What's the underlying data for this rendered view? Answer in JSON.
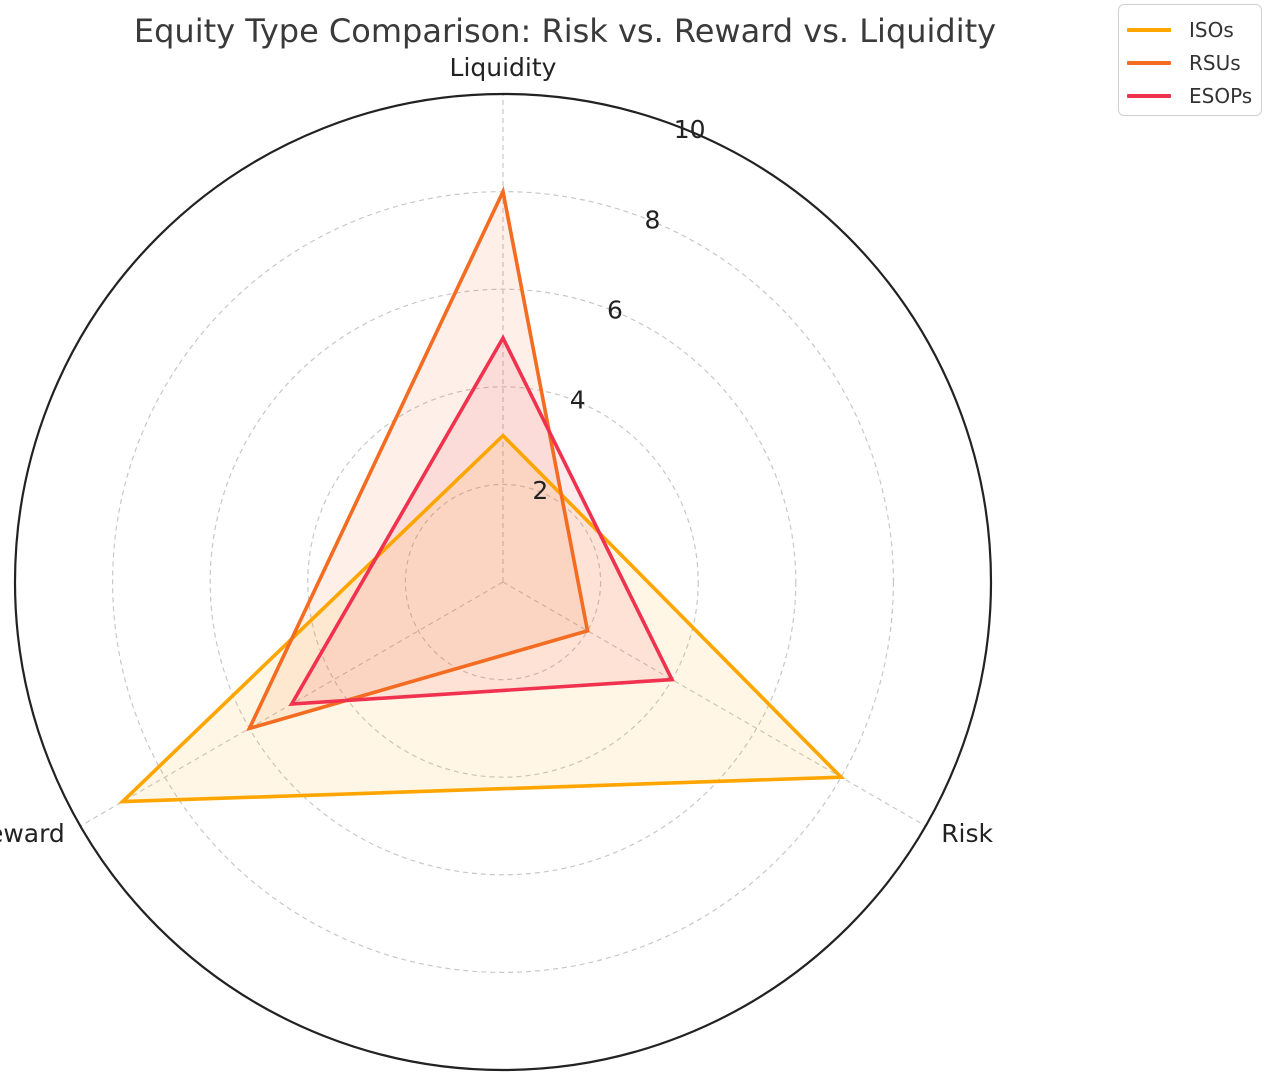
{
  "chart_data": {
    "type": "radar",
    "title": "Equity Type Comparison: Risk vs. Reward vs. Liquidity",
    "axes": [
      "Liquidity",
      "Risk",
      "Reward"
    ],
    "rlim": [
      0,
      10
    ],
    "r_ticks": [
      2,
      4,
      6,
      8,
      10
    ],
    "grid": true,
    "legend_position": "top-right",
    "series": [
      {
        "name": "ISOs",
        "color": "#FFA500",
        "values": [
          3,
          8,
          9
        ]
      },
      {
        "name": "RSUs",
        "color": "#F36C21",
        "values": [
          8,
          2,
          6
        ]
      },
      {
        "name": "ESOPs",
        "color": "#F0324F",
        "values": [
          5,
          4,
          5
        ]
      }
    ]
  }
}
